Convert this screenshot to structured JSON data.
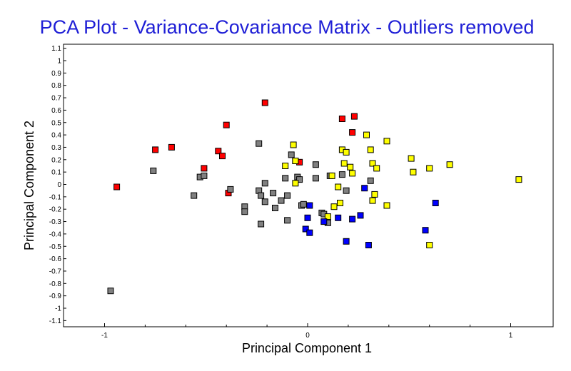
{
  "chart_data": {
    "type": "scatter",
    "title": "PCA Plot - Variance-Covariance Matrix - Outliers removed",
    "xlabel": "Principal Component 1",
    "ylabel": "Principal Component 2",
    "xlim": [
      -1.2,
      1.2
    ],
    "ylim": [
      -1.15,
      1.15
    ],
    "x_ticks": [
      -1,
      0,
      1
    ],
    "x_tick_labels": [
      "-1",
      "0",
      "1"
    ],
    "y_ticks": [
      1.1,
      1,
      0.9,
      0.8,
      0.7,
      0.6,
      0.5,
      0.4,
      0.3,
      0.2,
      0.1,
      0,
      -0.1,
      -0.2,
      -0.3,
      -0.4,
      -0.5,
      -0.6,
      -0.7,
      -0.8,
      -0.9,
      -1,
      -1.1
    ],
    "y_tick_labels": [
      "1.1",
      "1",
      "0.9",
      "0.8",
      "0.7",
      "0.6",
      "0.5",
      "0.4",
      "0.3",
      "0.2",
      "0.1",
      "0",
      "-0.1",
      "-0.2",
      "-0.3",
      "-0.4",
      "-0.5",
      "-0.6",
      "-0.7",
      "-0.8",
      "-0.9",
      "-1",
      "-1.1"
    ],
    "grid": false,
    "legend": false,
    "marker": "square",
    "series": [
      {
        "color": "#ff0000",
        "points": [
          [
            -0.94,
            -0.02
          ],
          [
            -0.75,
            0.28
          ],
          [
            -0.67,
            0.3
          ],
          [
            -0.51,
            0.13
          ],
          [
            -0.44,
            0.27
          ],
          [
            -0.42,
            0.23
          ],
          [
            -0.4,
            0.48
          ],
          [
            -0.39,
            -0.07
          ],
          [
            -0.21,
            0.66
          ],
          [
            -0.04,
            0.18
          ],
          [
            0.17,
            0.53
          ],
          [
            0.23,
            0.55
          ],
          [
            0.22,
            0.42
          ]
        ]
      },
      {
        "color": "#808080",
        "points": [
          [
            -0.97,
            -0.86
          ],
          [
            -0.76,
            0.11
          ],
          [
            -0.56,
            -0.09
          ],
          [
            -0.53,
            0.06
          ],
          [
            -0.51,
            0.07
          ],
          [
            -0.38,
            -0.04
          ],
          [
            -0.31,
            -0.18
          ],
          [
            -0.31,
            -0.22
          ],
          [
            -0.24,
            0.33
          ],
          [
            -0.24,
            -0.05
          ],
          [
            -0.23,
            -0.09
          ],
          [
            -0.23,
            -0.32
          ],
          [
            -0.21,
            0.01
          ],
          [
            -0.21,
            -0.14
          ],
          [
            -0.17,
            -0.07
          ],
          [
            -0.16,
            -0.19
          ],
          [
            -0.13,
            -0.13
          ],
          [
            -0.11,
            0.05
          ],
          [
            -0.1,
            -0.09
          ],
          [
            -0.1,
            -0.29
          ],
          [
            -0.08,
            0.24
          ],
          [
            -0.06,
            0.19
          ],
          [
            -0.05,
            0.06
          ],
          [
            -0.04,
            0.04
          ],
          [
            -0.03,
            -0.17
          ],
          [
            -0.02,
            -0.16
          ],
          [
            0.04,
            0.05
          ],
          [
            0.04,
            0.16
          ],
          [
            0.07,
            -0.23
          ],
          [
            0.08,
            -0.24
          ],
          [
            0.1,
            -0.31
          ],
          [
            0.11,
            0.07
          ],
          [
            0.17,
            0.08
          ],
          [
            0.19,
            -0.05
          ],
          [
            0.31,
            0.03
          ]
        ]
      },
      {
        "color": "#ffff00",
        "points": [
          [
            -0.11,
            0.15
          ],
          [
            -0.07,
            0.32
          ],
          [
            -0.06,
            0.19
          ],
          [
            -0.06,
            0.01
          ],
          [
            0.1,
            -0.26
          ],
          [
            0.12,
            0.07
          ],
          [
            0.13,
            -0.18
          ],
          [
            0.15,
            -0.02
          ],
          [
            0.16,
            -0.15
          ],
          [
            0.17,
            0.28
          ],
          [
            0.18,
            0.17
          ],
          [
            0.19,
            0.26
          ],
          [
            0.21,
            0.14
          ],
          [
            0.22,
            0.09
          ],
          [
            0.29,
            0.4
          ],
          [
            0.31,
            0.28
          ],
          [
            0.32,
            0.17
          ],
          [
            0.32,
            -0.13
          ],
          [
            0.33,
            -0.08
          ],
          [
            0.34,
            0.13
          ],
          [
            0.39,
            0.35
          ],
          [
            0.39,
            -0.17
          ],
          [
            0.51,
            0.21
          ],
          [
            0.52,
            0.1
          ],
          [
            0.6,
            0.13
          ],
          [
            0.6,
            -0.49
          ],
          [
            0.7,
            0.16
          ],
          [
            1.04,
            0.04
          ]
        ]
      },
      {
        "color": "#0000ff",
        "points": [
          [
            -0.01,
            -0.36
          ],
          [
            0.0,
            -0.27
          ],
          [
            0.01,
            -0.17
          ],
          [
            0.01,
            -0.39
          ],
          [
            0.08,
            -0.3
          ],
          [
            0.15,
            -0.27
          ],
          [
            0.19,
            -0.46
          ],
          [
            0.22,
            -0.28
          ],
          [
            0.26,
            -0.25
          ],
          [
            0.28,
            -0.03
          ],
          [
            0.3,
            -0.49
          ],
          [
            0.58,
            -0.37
          ],
          [
            0.63,
            -0.15
          ]
        ]
      }
    ]
  }
}
